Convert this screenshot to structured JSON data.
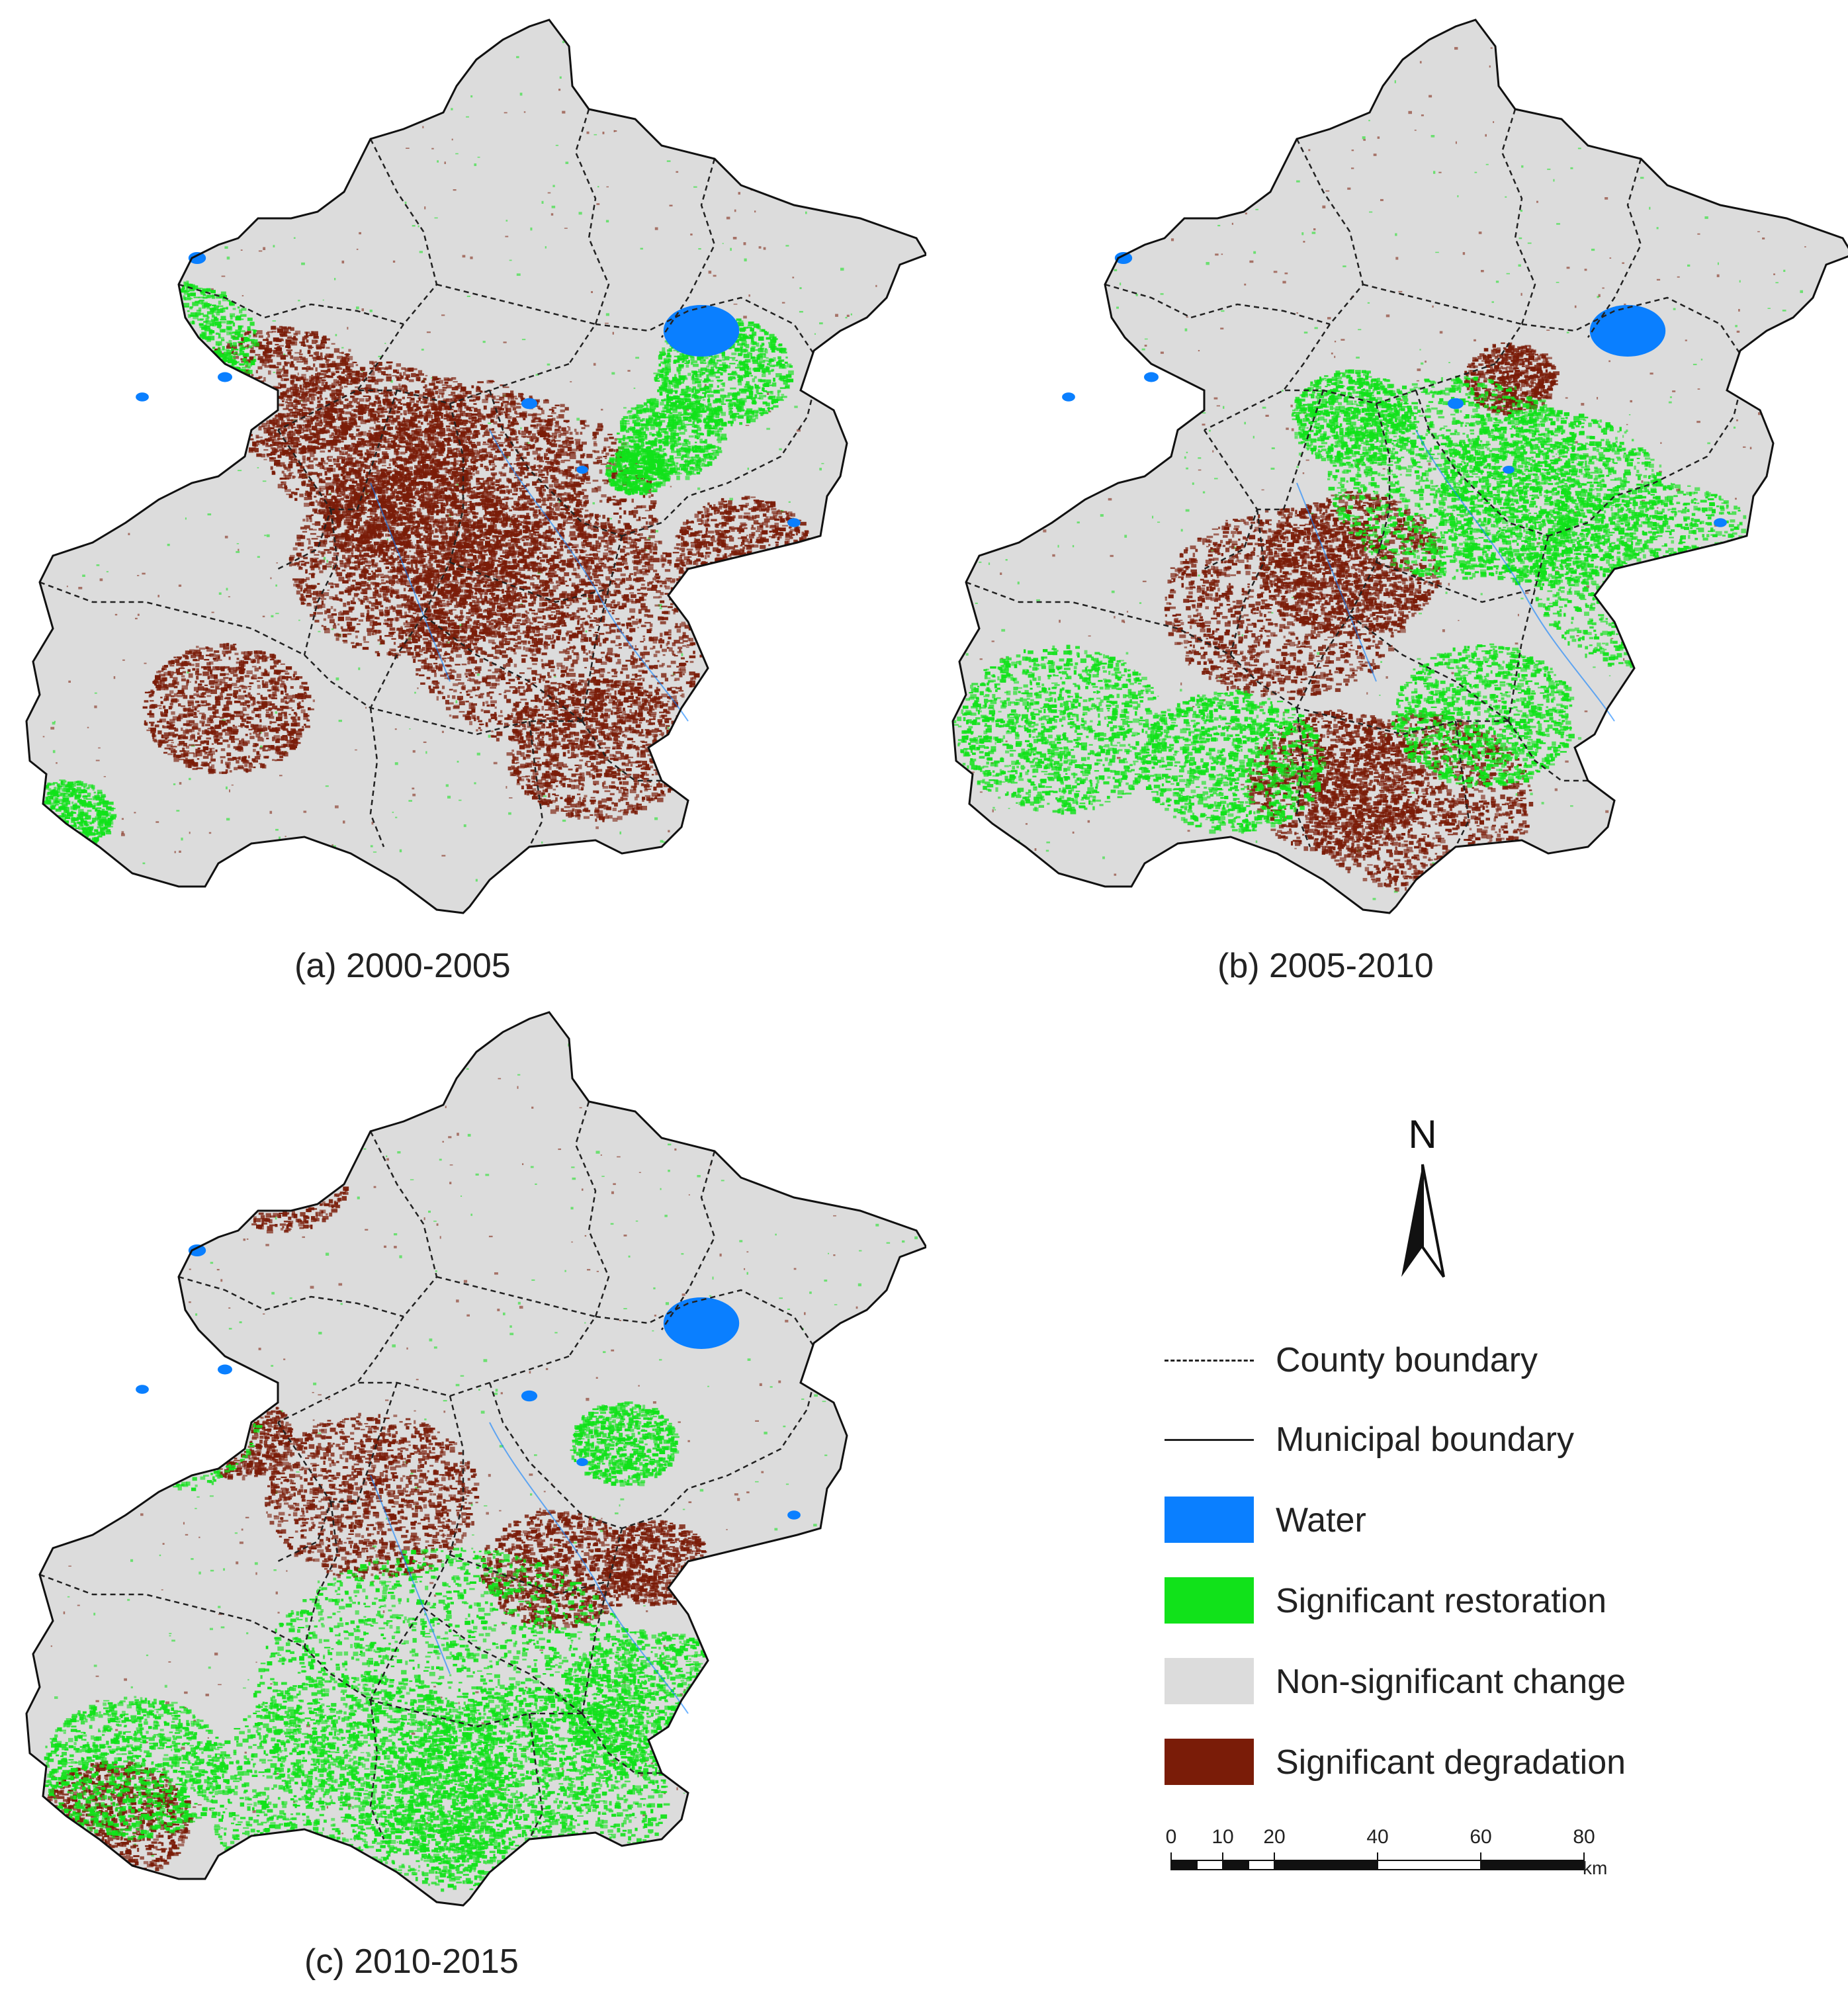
{
  "panels": [
    {
      "caption": "(a) 2000-2005",
      "period": "2000-2005",
      "dominant": "degradation"
    },
    {
      "caption": "(b) 2005-2010",
      "period": "2005-2010",
      "dominant": "mixed"
    },
    {
      "caption": "(c) 2010-2015",
      "period": "2010-2015",
      "dominant": "restoration"
    }
  ],
  "legend": {
    "county_boundary": "County boundary",
    "municipal_boundary": "Municipal boundary",
    "water": "Water",
    "restoration": "Significant restoration",
    "nonsignificant": "Non-significant change",
    "degradation": "Significant degradation"
  },
  "colors": {
    "water": "#0a7fff",
    "restoration": "#11e21a",
    "nonsignificant": "#dcdcdc",
    "degradation": "#7a1c08",
    "boundary": "#111111"
  },
  "north_arrow": {
    "label": "N",
    "icon": "north-arrow-icon"
  },
  "scale_bar": {
    "ticks": [
      "0",
      "10",
      "20",
      "40",
      "60",
      "80"
    ],
    "tick_values": [
      0,
      10,
      20,
      40,
      60,
      80
    ],
    "unit": "km"
  }
}
